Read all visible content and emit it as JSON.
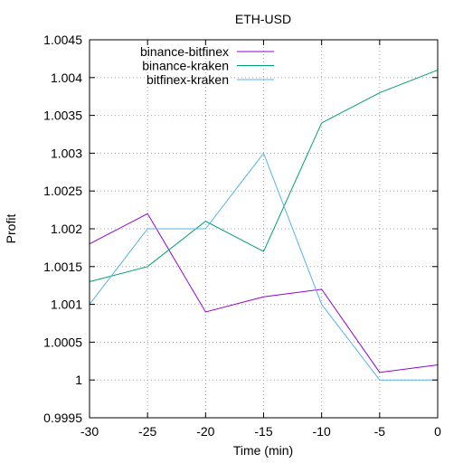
{
  "chart_data": {
    "type": "line",
    "title": "ETH-USD",
    "xlabel": "Time (min)",
    "ylabel": "Profit",
    "x": [
      -30,
      -25,
      -20,
      -15,
      -10,
      -5,
      0
    ],
    "xlim": [
      -30,
      0
    ],
    "ylim": [
      0.9995,
      1.0045
    ],
    "xticks": [
      -30,
      -25,
      -20,
      -15,
      -10,
      -5,
      0
    ],
    "xtick_labels": [
      "-30",
      "-25",
      "-20",
      "-15",
      "-10",
      "-5",
      "0"
    ],
    "yticks": [
      0.9995,
      1,
      1.0005,
      1.001,
      1.0015,
      1.002,
      1.0025,
      1.003,
      1.0035,
      1.004,
      1.0045
    ],
    "ytick_labels": [
      "0.9995",
      "1",
      "1.0005",
      "1.001",
      "1.0015",
      "1.002",
      "1.0025",
      "1.003",
      "1.0035",
      "1.004",
      "1.0045"
    ],
    "grid": true,
    "legend_position": "top-left",
    "series": [
      {
        "name": "binance-bitfinex",
        "color": "#9400d3",
        "values": [
          1.0018,
          1.0022,
          1.0009,
          1.0011,
          1.0012,
          1.0001,
          1.0002
        ]
      },
      {
        "name": "binance-kraken",
        "color": "#009e73",
        "values": [
          1.0013,
          1.0015,
          1.0021,
          1.0017,
          1.0034,
          1.0038,
          1.0041
        ]
      },
      {
        "name": "bitfinex-kraken",
        "color": "#56b4e9",
        "values": [
          1.001,
          1.002,
          1.002,
          1.003,
          1.001,
          1.0,
          1.0
        ]
      }
    ]
  }
}
